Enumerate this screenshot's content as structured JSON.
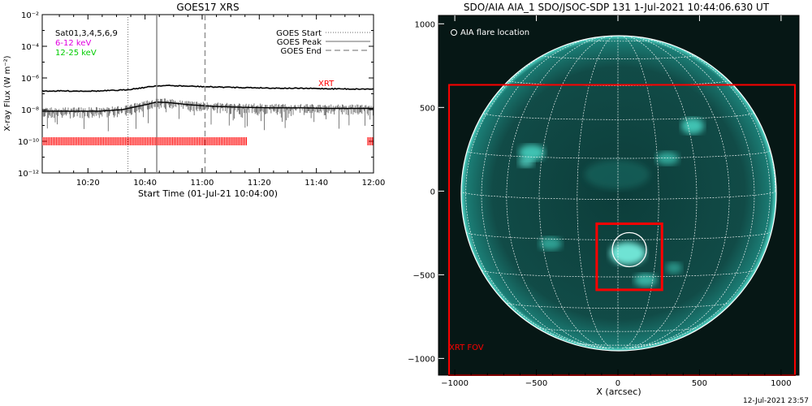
{
  "goes_panel": {
    "title": "GOES17 XRS",
    "ylabel": "X-ray Flux (W m⁻²)",
    "xlabel": "Start Time (01-Jul-21 10:04:00)",
    "y_tick_labels": [
      "10⁻²",
      "10⁻⁴",
      "10⁻⁶",
      "10⁻⁸",
      "10⁻¹⁰",
      "10⁻¹²"
    ],
    "x_tick_labels": [
      "10:20",
      "10:40",
      "11:00",
      "11:20",
      "11:40",
      "12:00"
    ],
    "channel_labels": [
      {
        "text": "Sat01,3,4,5,6,9",
        "color": "#000000"
      },
      {
        "text": "6-12 keV",
        "color": "#e000e0"
      },
      {
        "text": "12-25 keV",
        "color": "#00cc00"
      }
    ],
    "marker_legend": [
      "GOES Start",
      "GOES Peak",
      "GOES End"
    ],
    "xrt_label": "XRT",
    "xrt_color": "#ff0000"
  },
  "aia_panel": {
    "title": "SDO/AIA AIA_1 SDO/JSOC-SDP 131  1-Jul-2021 10:44:06.630 UT",
    "legend": "AIA flare location",
    "fov_label": "XRT FOV",
    "xlabel": "X (arcsec)",
    "x_tick_labels": [
      "−1000",
      "−500",
      "0",
      "500",
      "1000"
    ],
    "y_tick_labels": [
      "1000",
      "500",
      "0",
      "−500",
      "−1000"
    ],
    "disk_color": "#1e9c92",
    "box_color": "#ff0000"
  },
  "footer_timestamp": "12-Jul-2021 23:57",
  "chart_data": [
    {
      "type": "line",
      "title": "GOES17 XRS",
      "xlabel": "Start Time (01-Jul-21 10:04:00)",
      "ylabel": "X-ray Flux (W m^-2)",
      "x_unit": "minutes after 10:04:00",
      "xlim": [
        0,
        116
      ],
      "ylim": [
        1e-12,
        0.01
      ],
      "yscale": "log",
      "x_ticks": [
        "10:20",
        "10:40",
        "11:00",
        "11:20",
        "11:40",
        "12:00"
      ],
      "series": [
        {
          "name": "6-12 keV",
          "x": [
            0,
            20,
            28,
            36,
            40,
            44,
            52,
            60,
            70,
            80,
            90,
            100,
            110,
            116
          ],
          "y": [
            1.5e-07,
            1.5e-07,
            1.7e-07,
            2.5e-07,
            3.2e-07,
            3.3e-07,
            3e-07,
            2.7e-07,
            2.5e-07,
            2.3e-07,
            2.2e-07,
            2.1e-07,
            2e-07,
            2e-07
          ]
        },
        {
          "name": "12-25 keV",
          "x": [
            0,
            20,
            28,
            36,
            40,
            44,
            52,
            60,
            70,
            80,
            90,
            100,
            110,
            116
          ],
          "y": [
            8e-09,
            8e-09,
            1e-08,
            2e-08,
            3e-08,
            2.8e-08,
            2e-08,
            1.6e-08,
            1.4e-08,
            1.3e-08,
            1.3e-08,
            1.2e-08,
            1.2e-08,
            1.2e-08
          ]
        }
      ],
      "markers": [
        {
          "name": "GOES Start",
          "x": 30,
          "style": "dotted"
        },
        {
          "name": "GOES Peak",
          "x": 40.1,
          "style": "solid"
        },
        {
          "name": "GOES End",
          "x": 57,
          "style": "dashed"
        }
      ],
      "xrt_intervals": [
        [
          0,
          72
        ],
        [
          114,
          116
        ]
      ],
      "xrt_level": 1e-10
    },
    {
      "type": "scatter",
      "title": "SDO/AIA AIA_1 SDO/JSOC-SDP 131  1-Jul-2021 10:44:06.630 UT",
      "xlabel": "X (arcsec)",
      "xlim": [
        -1100,
        1110
      ],
      "ylim": [
        -1100,
        1050
      ],
      "solar_radius": 946,
      "flare_location": {
        "x": 70,
        "y": -350
      },
      "xrt_fov_box": [
        -1035,
        -1100,
        1085,
        635
      ],
      "zoom_box": [
        -130,
        -590,
        270,
        -195
      ]
    }
  ]
}
